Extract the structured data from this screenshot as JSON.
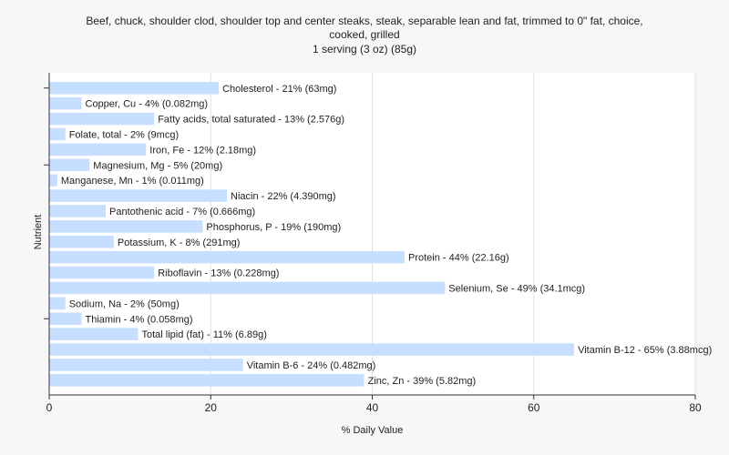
{
  "chart_data": {
    "type": "bar",
    "orientation": "horizontal",
    "title_lines": [
      "Beef, chuck, shoulder clod, shoulder top and center steaks, steak, separable lean and fat, trimmed to 0\" fat, choice,",
      "cooked, grilled"
    ],
    "subtitle": "1 serving (3 oz) (85g)",
    "xlabel": "% Daily Value",
    "ylabel": "Nutrient",
    "xlim": [
      0,
      80
    ],
    "xticks": [
      0,
      20,
      40,
      60,
      80
    ],
    "grid": true,
    "categories": [
      "Cholesterol",
      "Copper, Cu",
      "Fatty acids, total saturated",
      "Folate, total",
      "Iron, Fe",
      "Magnesium, Mg",
      "Manganese, Mn",
      "Niacin",
      "Pantothenic acid",
      "Phosphorus, P",
      "Potassium, K",
      "Protein",
      "Riboflavin",
      "Selenium, Se",
      "Sodium, Na",
      "Thiamin",
      "Total lipid (fat)",
      "Vitamin B-12",
      "Vitamin B-6",
      "Zinc, Zn"
    ],
    "values": [
      21,
      4,
      13,
      2,
      12,
      5,
      1,
      22,
      7,
      19,
      8,
      44,
      13,
      49,
      2,
      4,
      11,
      65,
      24,
      39
    ],
    "labels": [
      "Cholesterol - 21% (63mg)",
      "Copper, Cu - 4% (0.082mg)",
      "Fatty acids, total saturated - 13% (2.576g)",
      "Folate, total - 2% (9mcg)",
      "Iron, Fe - 12% (2.18mg)",
      "Magnesium, Mg - 5% (20mg)",
      "Manganese, Mn - 1% (0.011mg)",
      "Niacin - 22% (4.390mg)",
      "Pantothenic acid - 7% (0.666mg)",
      "Phosphorus, P - 19% (190mg)",
      "Potassium, K - 8% (291mg)",
      "Protein - 44% (22.16g)",
      "Riboflavin - 13% (0.228mg)",
      "Selenium, Se - 49% (34.1mcg)",
      "Sodium, Na - 2% (50mg)",
      "Thiamin - 4% (0.058mg)",
      "Total lipid (fat) - 11% (6.89g)",
      "Vitamin B-12 - 65% (3.88mcg)",
      "Vitamin B-6 - 24% (0.482mg)",
      "Zinc, Zn - 39% (5.82mg)"
    ],
    "colors": {
      "bar": "#c6deff",
      "plot_background": "#ffffff",
      "page_background": "#f7f7f7",
      "grid": "#e2e2e2",
      "axis": "#333333"
    }
  }
}
